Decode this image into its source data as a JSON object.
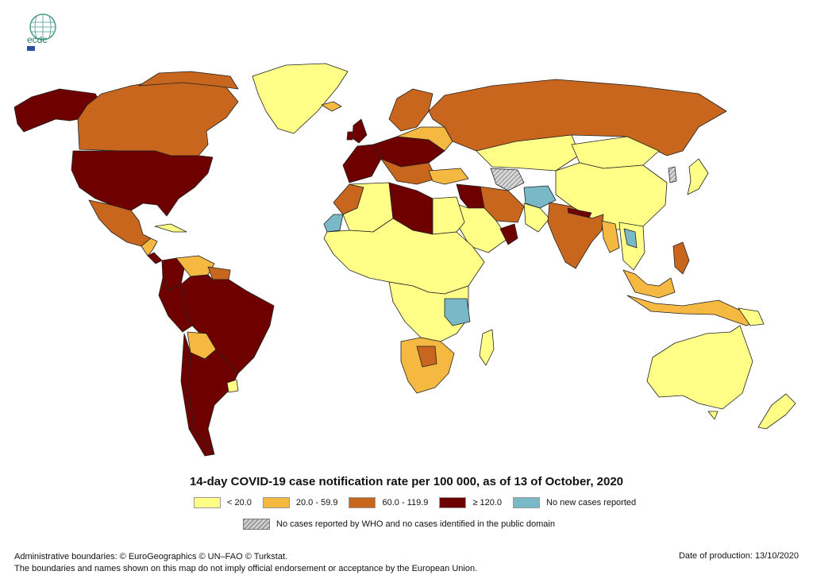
{
  "title": "14-day COVID-19 case notification rate per 100 000, as of 13 of October, 2020",
  "logo": {
    "text": "ecdc"
  },
  "legend": [
    {
      "label": "< 20.0",
      "color": "#FFFF88"
    },
    {
      "label": "20.0 - 59.9",
      "color": "#F5B942"
    },
    {
      "label": "60.0 - 119.9",
      "color": "#C8661E"
    },
    {
      "label": "≥ 120.0",
      "color": "#6E0000"
    },
    {
      "label": "No new cases reported",
      "color": "#79B8C6"
    }
  ],
  "legend_hatched": {
    "label": "No cases reported by WHO and no cases identified in the public domain"
  },
  "footer": {
    "attribution": "Administrative boundaries: © EuroGeographics © UN–FAO © Turkstat.",
    "disclaimer": "The boundaries and names shown on this map do not imply official endorsement or acceptance by the European Union.",
    "date": "Date of production: 13/10/2020"
  },
  "colors": {
    "border": "#222222",
    "background": "#ffffff"
  }
}
